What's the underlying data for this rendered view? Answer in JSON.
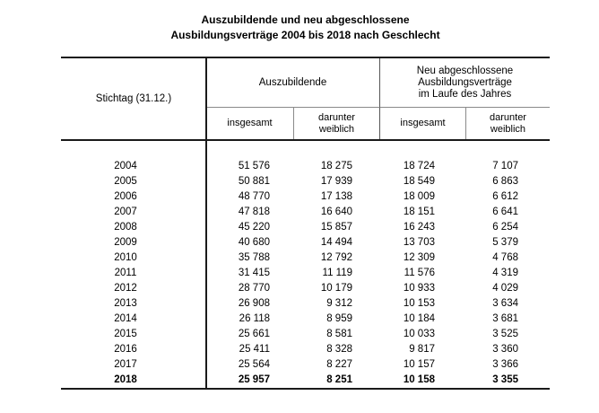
{
  "title": {
    "line1": "Auszubildende und neu abgeschlossene",
    "line2": "Ausbildungsverträge 2004 bis 2018 nach Geschlecht"
  },
  "table": {
    "corner_header": "Stichtag (31.12.)",
    "group1_header": "Auszubildende",
    "group2_header_lines": [
      "Neu abgeschlossene",
      "Ausbildungsverträge",
      "im Laufe des Jahres"
    ],
    "sub_headers": [
      [
        "insgesamt"
      ],
      [
        "darunter",
        "weiblich"
      ],
      [
        "insgesamt"
      ],
      [
        "darunter",
        "weiblich"
      ]
    ],
    "rows": [
      {
        "year": "2004",
        "values": [
          "51 576",
          "18 275",
          "18 724",
          "7 107"
        ],
        "bold": false
      },
      {
        "year": "2005",
        "values": [
          "50 881",
          "17 939",
          "18 549",
          "6 863"
        ],
        "bold": false
      },
      {
        "year": "2006",
        "values": [
          "48 770",
          "17 138",
          "18 009",
          "6 612"
        ],
        "bold": false
      },
      {
        "year": "2007",
        "values": [
          "47 818",
          "16 640",
          "18 151",
          "6 641"
        ],
        "bold": false
      },
      {
        "year": "2008",
        "values": [
          "45 220",
          "15 857",
          "16 243",
          "6 254"
        ],
        "bold": false
      },
      {
        "year": "2009",
        "values": [
          "40 680",
          "14 494",
          "13 703",
          "5 379"
        ],
        "bold": false
      },
      {
        "year": "2010",
        "values": [
          "35 788",
          "12 792",
          "12 309",
          "4 768"
        ],
        "bold": false
      },
      {
        "year": "2011",
        "values": [
          "31 415",
          "11 119",
          "11 576",
          "4 319"
        ],
        "bold": false
      },
      {
        "year": "2012",
        "values": [
          "28 770",
          "10 179",
          "10 933",
          "4 029"
        ],
        "bold": false
      },
      {
        "year": "2013",
        "values": [
          "26 908",
          "9 312",
          "10 153",
          "3 634"
        ],
        "bold": false
      },
      {
        "year": "2014",
        "values": [
          "26 118",
          "8 959",
          "10 184",
          "3 681"
        ],
        "bold": false
      },
      {
        "year": "2015",
        "values": [
          "25 661",
          "8 581",
          "10 033",
          "3 525"
        ],
        "bold": false
      },
      {
        "year": "2016",
        "values": [
          "25 411",
          "8 328",
          "9 817",
          "3 360"
        ],
        "bold": false
      },
      {
        "year": "2017",
        "values": [
          "25 564",
          "8 227",
          "10 157",
          "3 366"
        ],
        "bold": false
      },
      {
        "year": "2018",
        "values": [
          "25 957",
          "8 251",
          "10 158",
          "3 355"
        ],
        "bold": true
      }
    ]
  },
  "chart_data": {
    "type": "table",
    "title": "Auszubildende und neu abgeschlossene Ausbildungsverträge 2004 bis 2018 nach Geschlecht",
    "columns": [
      "Stichtag (31.12.)",
      "Auszubildende insgesamt",
      "Auszubildende darunter weiblich",
      "Neu abgeschlossene Ausbildungsverträge im Laufe des Jahres insgesamt",
      "Neu abgeschlossene Ausbildungsverträge im Laufe des Jahres darunter weiblich"
    ],
    "rows": [
      [
        2004,
        51576,
        18275,
        18724,
        7107
      ],
      [
        2005,
        50881,
        17939,
        18549,
        6863
      ],
      [
        2006,
        48770,
        17138,
        18009,
        6612
      ],
      [
        2007,
        47818,
        16640,
        18151,
        6641
      ],
      [
        2008,
        45220,
        15857,
        16243,
        6254
      ],
      [
        2009,
        40680,
        14494,
        13703,
        5379
      ],
      [
        2010,
        35788,
        12792,
        12309,
        4768
      ],
      [
        2011,
        31415,
        11119,
        11576,
        4319
      ],
      [
        2012,
        28770,
        10179,
        10933,
        4029
      ],
      [
        2013,
        26908,
        9312,
        10153,
        3634
      ],
      [
        2014,
        26118,
        8959,
        10184,
        3681
      ],
      [
        2015,
        25661,
        8581,
        10033,
        3525
      ],
      [
        2016,
        25411,
        8328,
        9817,
        3360
      ],
      [
        2017,
        25564,
        8227,
        10157,
        3366
      ],
      [
        2018,
        25957,
        8251,
        10158,
        3355
      ]
    ],
    "notes": "Row 2018 is printed bold. Numbers use a space as thousands separator."
  },
  "colors": {
    "background": "#ffffff",
    "text": "#000000",
    "line_strong": "#1a1a1a",
    "line_light": "#8a8a8a"
  }
}
